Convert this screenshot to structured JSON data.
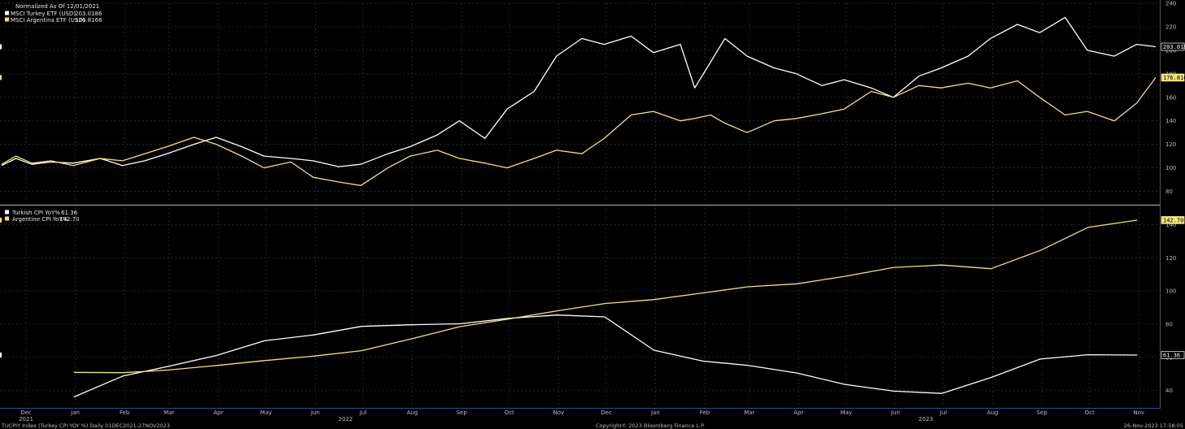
{
  "colors": {
    "background": "#000000",
    "turkey": "#ffffff",
    "argentina": "#f2e27a",
    "grid": "#3a3a3a",
    "divider": "#8a8a8a",
    "axis_line": "#2a4a9a"
  },
  "chart_data": [
    {
      "type": "line",
      "title": "Normalized As Of 12/01/2021",
      "legend_position": "top-left",
      "grid": true,
      "ylim": [
        70,
        240
      ],
      "yticks": [
        80,
        100,
        120,
        140,
        160,
        180,
        200,
        220,
        240
      ],
      "x_domain": [
        "2021-12-01",
        "2023-11-27"
      ],
      "series": [
        {
          "name": "MSCI Turkey ETF (USD)",
          "last": "203.0186",
          "color": "#ffffff",
          "x": [
            "2021-12-01",
            "2021-12-10",
            "2021-12-20",
            "2022-01-01",
            "2022-01-15",
            "2022-02-01",
            "2022-02-15",
            "2022-03-01",
            "2022-03-15",
            "2022-04-01",
            "2022-04-15",
            "2022-05-01",
            "2022-05-15",
            "2022-06-01",
            "2022-06-15",
            "2022-07-01",
            "2022-07-15",
            "2022-08-01",
            "2022-08-15",
            "2022-09-01",
            "2022-09-15",
            "2022-10-01",
            "2022-10-15",
            "2022-11-01",
            "2022-11-15",
            "2022-12-01",
            "2022-12-15",
            "2023-01-01",
            "2023-01-15",
            "2023-02-01",
            "2023-02-10",
            "2023-02-20",
            "2023-03-01",
            "2023-03-15",
            "2023-04-01",
            "2023-04-15",
            "2023-05-01",
            "2023-05-15",
            "2023-06-01",
            "2023-06-15",
            "2023-07-01",
            "2023-07-15",
            "2023-08-01",
            "2023-08-15",
            "2023-09-01",
            "2023-09-15",
            "2023-10-01",
            "2023-10-15",
            "2023-11-01",
            "2023-11-15",
            "2023-11-27"
          ],
          "values": [
            102,
            108,
            103,
            105,
            104,
            108,
            102,
            106,
            112,
            120,
            126,
            118,
            110,
            108,
            106,
            101,
            103,
            112,
            118,
            128,
            140,
            125,
            150,
            165,
            195,
            210,
            205,
            212,
            198,
            205,
            168,
            190,
            210,
            195,
            185,
            180,
            170,
            175,
            168,
            160,
            178,
            185,
            195,
            210,
            222,
            215,
            228,
            200,
            195,
            205,
            203.0186
          ]
        },
        {
          "name": "MSCI Argentina ETF (USD)",
          "last": "176.8166",
          "color": "#f2e27a",
          "x": [
            "2021-12-01",
            "2021-12-10",
            "2021-12-20",
            "2022-01-01",
            "2022-01-15",
            "2022-02-01",
            "2022-02-15",
            "2022-03-01",
            "2022-03-15",
            "2022-04-01",
            "2022-04-15",
            "2022-05-01",
            "2022-05-15",
            "2022-06-01",
            "2022-06-15",
            "2022-07-01",
            "2022-07-15",
            "2022-08-01",
            "2022-08-15",
            "2022-09-01",
            "2022-09-15",
            "2022-10-01",
            "2022-10-15",
            "2022-11-01",
            "2022-11-15",
            "2022-12-01",
            "2022-12-15",
            "2023-01-01",
            "2023-01-15",
            "2023-02-01",
            "2023-02-10",
            "2023-02-20",
            "2023-03-01",
            "2023-03-15",
            "2023-04-01",
            "2023-04-15",
            "2023-05-01",
            "2023-05-15",
            "2023-06-01",
            "2023-06-15",
            "2023-07-01",
            "2023-07-15",
            "2023-08-01",
            "2023-08-15",
            "2023-09-01",
            "2023-09-15",
            "2023-10-01",
            "2023-10-15",
            "2023-11-01",
            "2023-11-15",
            "2023-11-27"
          ],
          "values": [
            103,
            110,
            104,
            106,
            102,
            108,
            106,
            112,
            118,
            126,
            120,
            110,
            100,
            105,
            92,
            88,
            85,
            100,
            110,
            115,
            108,
            104,
            100,
            108,
            115,
            112,
            125,
            145,
            148,
            140,
            142,
            145,
            138,
            130,
            140,
            142,
            146,
            150,
            165,
            160,
            170,
            168,
            172,
            168,
            174,
            160,
            145,
            148,
            140,
            155,
            176.8166
          ]
        }
      ]
    },
    {
      "type": "line",
      "grid": true,
      "legend_position": "top-left",
      "ylim": [
        30,
        150
      ],
      "yticks": [
        40,
        60,
        80,
        100,
        120,
        140
      ],
      "x_domain": [
        "2021-12-01",
        "2023-11-27"
      ],
      "series": [
        {
          "name": "Turkish CPI YoY%",
          "last": "61.36",
          "color": "#ffffff",
          "x": [
            "2021-12-31",
            "2022-01-31",
            "2022-02-28",
            "2022-03-31",
            "2022-04-30",
            "2022-05-31",
            "2022-06-30",
            "2022-07-31",
            "2022-08-31",
            "2022-09-30",
            "2022-10-31",
            "2022-11-30",
            "2022-12-31",
            "2023-01-31",
            "2023-02-28",
            "2023-03-31",
            "2023-04-30",
            "2023-05-31",
            "2023-06-30",
            "2023-07-31",
            "2023-08-31",
            "2023-09-30",
            "2023-10-31"
          ],
          "values": [
            36.08,
            48.69,
            54.44,
            61.14,
            69.97,
            73.5,
            78.62,
            79.6,
            80.21,
            83.45,
            85.51,
            84.39,
            64.27,
            57.68,
            55.18,
            50.51,
            43.68,
            39.59,
            38.21,
            47.83,
            58.94,
            61.53,
            61.36
          ]
        },
        {
          "name": "Argentine CPI YoY%",
          "last": "142.70",
          "color": "#f2e27a",
          "x": [
            "2021-12-31",
            "2022-01-31",
            "2022-02-28",
            "2022-03-31",
            "2022-04-30",
            "2022-05-31",
            "2022-06-30",
            "2022-07-31",
            "2022-08-31",
            "2022-09-30",
            "2022-10-31",
            "2022-11-30",
            "2022-12-31",
            "2023-01-31",
            "2023-02-28",
            "2023-03-31",
            "2023-04-30",
            "2023-05-31",
            "2023-06-30",
            "2023-07-31",
            "2023-08-31",
            "2023-09-30",
            "2023-10-31"
          ],
          "values": [
            50.9,
            50.7,
            52.3,
            55.1,
            58.0,
            60.7,
            64.0,
            71.0,
            78.5,
            83.0,
            88.0,
            92.4,
            94.8,
            98.8,
            102.5,
            104.3,
            108.8,
            114.2,
            115.6,
            113.4,
            124.4,
            138.3,
            142.7
          ]
        }
      ]
    }
  ],
  "x_axis": {
    "months": [
      {
        "label": "Dec",
        "date": "2021-12-01"
      },
      {
        "label": "Jan",
        "date": "2022-01-01"
      },
      {
        "label": "Feb",
        "date": "2022-02-01"
      },
      {
        "label": "Mar",
        "date": "2022-03-01"
      },
      {
        "label": "Apr",
        "date": "2022-04-01"
      },
      {
        "label": "May",
        "date": "2022-05-01"
      },
      {
        "label": "Jun",
        "date": "2022-06-01"
      },
      {
        "label": "Jul",
        "date": "2022-07-01"
      },
      {
        "label": "Aug",
        "date": "2022-08-01"
      },
      {
        "label": "Sep",
        "date": "2022-09-01"
      },
      {
        "label": "Oct",
        "date": "2022-10-01"
      },
      {
        "label": "Nov",
        "date": "2022-11-01"
      },
      {
        "label": "Dec",
        "date": "2022-12-01"
      },
      {
        "label": "Jan",
        "date": "2023-01-01"
      },
      {
        "label": "Feb",
        "date": "2023-02-01"
      },
      {
        "label": "Mar",
        "date": "2023-03-01"
      },
      {
        "label": "Apr",
        "date": "2023-04-01"
      },
      {
        "label": "May",
        "date": "2023-05-01"
      },
      {
        "label": "Jun",
        "date": "2023-06-01"
      },
      {
        "label": "Jul",
        "date": "2023-07-01"
      },
      {
        "label": "Aug",
        "date": "2023-08-01"
      },
      {
        "label": "Sep",
        "date": "2023-09-01"
      },
      {
        "label": "Oct",
        "date": "2023-10-01"
      },
      {
        "label": "Nov",
        "date": "2023-11-01"
      }
    ],
    "years": [
      {
        "label": "2021",
        "date": "2021-12-01"
      },
      {
        "label": "2022",
        "date": "2022-06-20"
      },
      {
        "label": "2023",
        "date": "2023-06-20"
      }
    ]
  },
  "footer": {
    "left": "TUCPIY Index (Turkey CPI YOY %)  Daily 01DEC2021-27NOV2023",
    "center": "Copyright© 2023 Bloomberg Finance L.P.",
    "right": "26-Nov-2023 17:58:05"
  }
}
